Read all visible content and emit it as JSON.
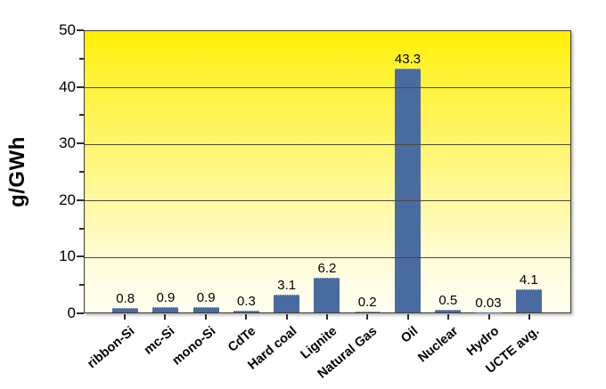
{
  "chart_data": {
    "type": "bar",
    "categories": [
      "ribbon-Si",
      "mc-Si",
      "mono-Si",
      "CdTe",
      "Hard coal",
      "Lignite",
      "Natural Gas",
      "Oil",
      "Nuclear",
      "Hydro",
      "UCTE avg."
    ],
    "values": [
      0.8,
      0.9,
      0.9,
      0.3,
      3.1,
      6.2,
      0.2,
      43.3,
      0.5,
      0.03,
      4.1
    ],
    "value_labels": [
      "0.8",
      "0.9",
      "0.9",
      "0.3",
      "3.1",
      "6.2",
      "0.2",
      "43.3",
      "0.5",
      "0.03",
      "4.1"
    ],
    "xlabel": "",
    "ylabel": "g/GWh",
    "ylim": [
      0,
      50
    ],
    "yticks": [
      0,
      10,
      20,
      30,
      40,
      50
    ],
    "minor_ytick_step": 5,
    "grid": "horizontal-major",
    "legend": "none",
    "colors": {
      "bar": "#4a6ba0",
      "plot_border": "#3c3c32",
      "gridline": "#4a4a3e",
      "tick": "#2e2e28",
      "text": "#000000",
      "gradient_stops": [
        "#fff005",
        "#fff233",
        "#fff566",
        "#fff9a6",
        "#fffcd9",
        "#fffef2"
      ]
    }
  }
}
